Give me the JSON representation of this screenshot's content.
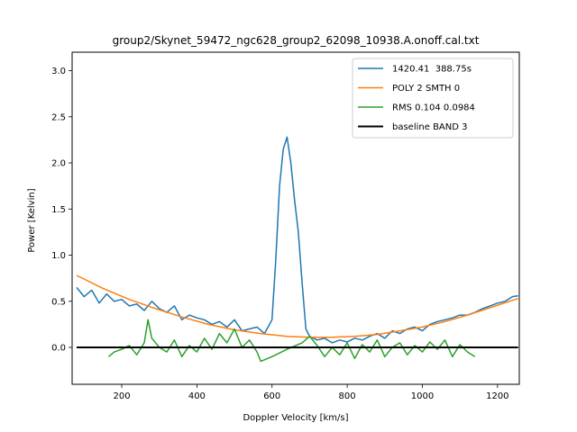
{
  "chart_data": {
    "type": "line",
    "title": "group2/Skynet_59472_ngc628_group2_62098_10938.A.onoff.cal.txt",
    "xlabel": "Doppler Velocity [km/s]",
    "ylabel": "Power [Kelvin]",
    "xlim": [
      68,
      1258
    ],
    "ylim": [
      -0.4,
      3.2
    ],
    "xticks": [
      200,
      400,
      600,
      800,
      1000,
      1200
    ],
    "yticks": [
      0.0,
      0.5,
      1.0,
      1.5,
      2.0,
      2.5,
      3.0
    ],
    "grid": false,
    "legend_position": "top-right",
    "series": [
      {
        "name": "1420.41  388.75s",
        "color": "#1f77b4",
        "x": [
          80,
          100,
          120,
          140,
          160,
          180,
          200,
          220,
          240,
          260,
          280,
          300,
          320,
          340,
          360,
          380,
          400,
          420,
          440,
          460,
          480,
          500,
          520,
          540,
          560,
          580,
          600,
          610,
          620,
          630,
          640,
          650,
          660,
          670,
          680,
          690,
          700,
          720,
          740,
          760,
          780,
          800,
          820,
          840,
          860,
          880,
          900,
          920,
          940,
          960,
          980,
          1000,
          1020,
          1040,
          1060,
          1080,
          1100,
          1120,
          1140,
          1160,
          1180,
          1200,
          1220,
          1240,
          1255
        ],
        "y": [
          0.65,
          0.55,
          0.62,
          0.48,
          0.58,
          0.5,
          0.52,
          0.45,
          0.47,
          0.4,
          0.5,
          0.42,
          0.38,
          0.45,
          0.3,
          0.35,
          0.32,
          0.3,
          0.25,
          0.28,
          0.22,
          0.3,
          0.18,
          0.2,
          0.22,
          0.15,
          0.3,
          0.95,
          1.75,
          2.15,
          2.28,
          2.0,
          1.6,
          1.25,
          0.7,
          0.2,
          0.12,
          0.08,
          0.1,
          0.05,
          0.08,
          0.06,
          0.1,
          0.08,
          0.12,
          0.15,
          0.1,
          0.18,
          0.15,
          0.2,
          0.22,
          0.18,
          0.25,
          0.28,
          0.3,
          0.32,
          0.35,
          0.35,
          0.38,
          0.42,
          0.45,
          0.48,
          0.5,
          0.55,
          0.56
        ]
      },
      {
        "name": "POLY 2 SMTH 0",
        "color": "#ff7f0e",
        "x": [
          80,
          150,
          220,
          290,
          360,
          430,
          500,
          570,
          640,
          700,
          760,
          820,
          880,
          940,
          1000,
          1060,
          1120,
          1180,
          1255
        ],
        "y": [
          0.78,
          0.64,
          0.52,
          0.42,
          0.33,
          0.25,
          0.19,
          0.15,
          0.12,
          0.11,
          0.11,
          0.12,
          0.14,
          0.18,
          0.22,
          0.28,
          0.35,
          0.43,
          0.53
        ]
      },
      {
        "name": "RMS 0.104 0.0984",
        "color": "#2ca02c",
        "x": [
          165,
          180,
          200,
          220,
          240,
          260,
          270,
          280,
          300,
          320,
          340,
          360,
          380,
          400,
          420,
          440,
          460,
          480,
          500,
          520,
          540,
          560,
          570,
          600,
          640,
          680,
          700,
          720,
          740,
          760,
          780,
          800,
          820,
          840,
          860,
          880,
          900,
          920,
          940,
          960,
          980,
          1000,
          1020,
          1040,
          1060,
          1080,
          1100,
          1120,
          1140
        ],
        "y": [
          -0.1,
          -0.05,
          -0.02,
          0.02,
          -0.08,
          0.05,
          0.3,
          0.1,
          0.0,
          -0.05,
          0.08,
          -0.1,
          0.02,
          -0.05,
          0.1,
          -0.02,
          0.15,
          0.05,
          0.2,
          0.0,
          0.08,
          -0.05,
          -0.15,
          -0.1,
          -0.02,
          0.05,
          0.12,
          0.02,
          -0.1,
          0.0,
          -0.08,
          0.05,
          -0.12,
          0.03,
          -0.05,
          0.08,
          -0.1,
          0.0,
          0.05,
          -0.08,
          0.02,
          -0.05,
          0.06,
          -0.02,
          0.08,
          -0.1,
          0.03,
          -0.05,
          -0.1
        ]
      },
      {
        "name": "baseline BAND 3",
        "color": "#000000",
        "x": [
          80,
          1255
        ],
        "y": [
          0.0,
          0.0
        ]
      }
    ]
  }
}
